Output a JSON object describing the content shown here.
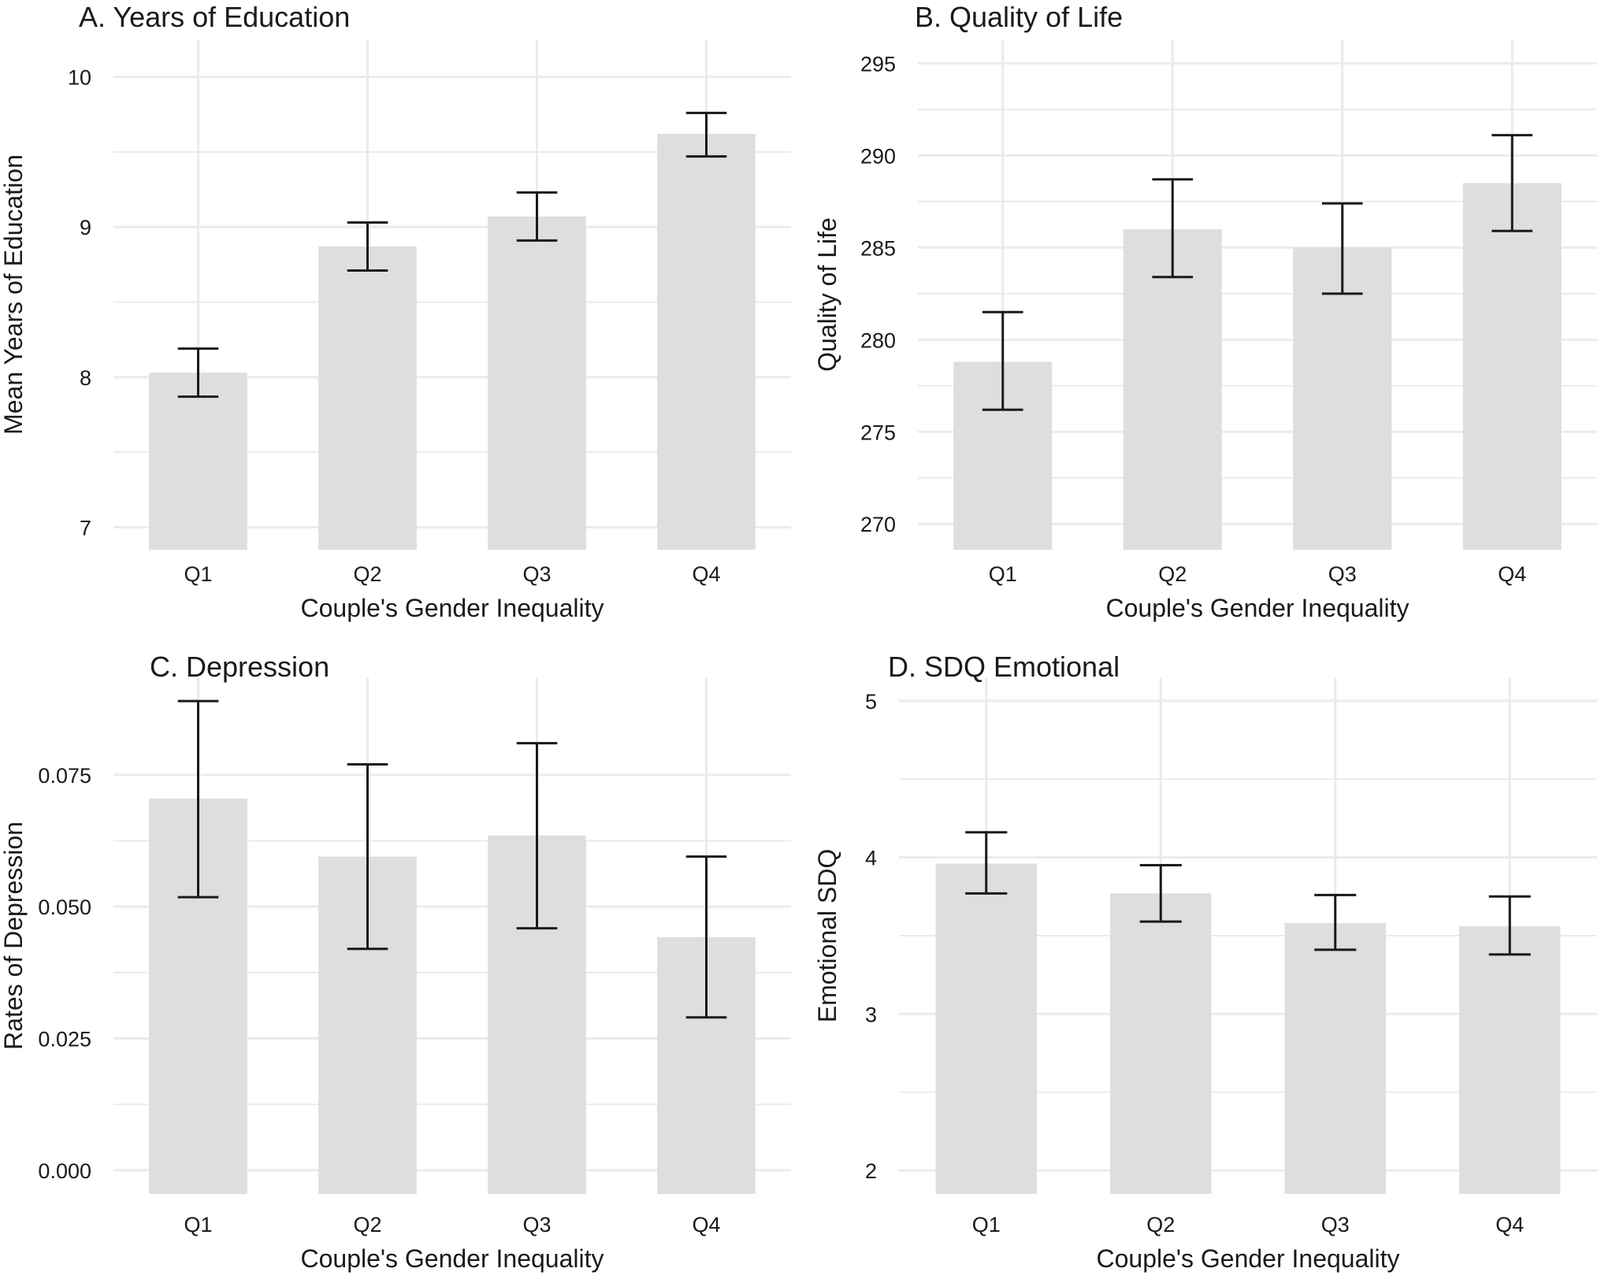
{
  "figure": {
    "background": "#ffffff",
    "bar_color": "#dedede",
    "grid_color": "#ebebeb",
    "errorbar_color": "#1a1a1a"
  },
  "chart_data": [
    {
      "id": "A",
      "type": "bar",
      "title": "A. Years of Education",
      "xlabel": "Couple's Gender Inequality",
      "ylabel": "Mean Years of Education",
      "categories": [
        "Q1",
        "Q2",
        "Q3",
        "Q4"
      ],
      "values": [
        8.03,
        8.87,
        9.07,
        9.62
      ],
      "error_low": [
        7.87,
        8.71,
        8.91,
        9.47
      ],
      "error_high": [
        8.19,
        9.03,
        9.23,
        9.76
      ],
      "yticks": [
        7,
        8,
        9,
        10
      ],
      "ytick_labels": [
        "7",
        "8",
        "9",
        "10"
      ],
      "ylim": [
        6.85,
        10.25
      ],
      "grid": true,
      "legend": "none"
    },
    {
      "id": "B",
      "type": "bar",
      "title": "B. Quality of Life",
      "xlabel": "Couple's Gender Inequality",
      "ylabel": "Quality of Life",
      "categories": [
        "Q1",
        "Q2",
        "Q3",
        "Q4"
      ],
      "values": [
        278.8,
        286.0,
        285.0,
        288.5
      ],
      "error_low": [
        276.2,
        283.4,
        282.5,
        285.9
      ],
      "error_high": [
        281.5,
        288.7,
        287.4,
        291.1
      ],
      "yticks": [
        270,
        275,
        280,
        285,
        290,
        295
      ],
      "ytick_labels": [
        "270",
        "275",
        "280",
        "285",
        "290",
        "295"
      ],
      "ylim": [
        268.6,
        296.3
      ],
      "grid": true,
      "legend": "none"
    },
    {
      "id": "C",
      "type": "bar",
      "title": "C. Depression",
      "xlabel": "Couple's Gender Inequality",
      "ylabel": "Rates of Depression",
      "categories": [
        "Q1",
        "Q2",
        "Q3",
        "Q4"
      ],
      "values": [
        0.0705,
        0.0595,
        0.0635,
        0.0442
      ],
      "error_low": [
        0.0518,
        0.042,
        0.0459,
        0.029
      ],
      "error_high": [
        0.089,
        0.077,
        0.081,
        0.0595
      ],
      "yticks": [
        0.0,
        0.025,
        0.05,
        0.075
      ],
      "ytick_labels": [
        "0.000",
        "0.025",
        "0.050",
        "0.075"
      ],
      "ylim": [
        -0.0045,
        0.0935
      ],
      "grid": true,
      "legend": "none"
    },
    {
      "id": "D",
      "type": "bar",
      "title": "D. SDQ Emotional",
      "xlabel": "Couple's Gender Inequality",
      "ylabel": "Emotional SDQ",
      "categories": [
        "Q1",
        "Q2",
        "Q3",
        "Q4"
      ],
      "values": [
        3.96,
        3.77,
        3.58,
        3.56
      ],
      "error_low": [
        3.77,
        3.59,
        3.41,
        3.38
      ],
      "error_high": [
        4.16,
        3.95,
        3.76,
        3.75
      ],
      "yticks": [
        2,
        3,
        4,
        5
      ],
      "ytick_labels": [
        "2",
        "3",
        "4",
        "5"
      ],
      "ylim": [
        1.85,
        5.15
      ],
      "grid": true,
      "legend": "none"
    }
  ]
}
